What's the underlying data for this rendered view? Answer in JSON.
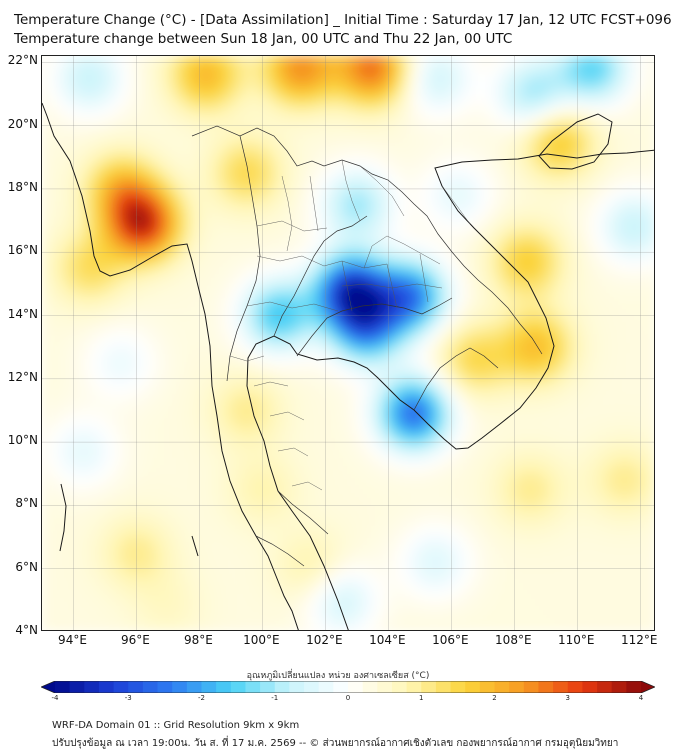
{
  "title_line1": "Temperature Change (°C) - [Data Assimilation] _ Initial Time : Saturday 17 Jan, 12 UTC FCST+096",
  "title_line2": "Temperature change between Sun 18 Jan, 00 UTC and Thu 22 Jan, 00 UTC",
  "map": {
    "lat_ticks": [
      "22°N",
      "20°N",
      "18°N",
      "16°N",
      "14°N",
      "12°N",
      "10°N",
      "8°N",
      "6°N",
      "4°N"
    ],
    "lon_ticks": [
      "94°E",
      "96°E",
      "98°E",
      "100°E",
      "102°E",
      "104°E",
      "106°E",
      "108°E",
      "110°E",
      "112°E"
    ],
    "lat_values": [
      22,
      20,
      18,
      16,
      14,
      12,
      10,
      8,
      6,
      4
    ],
    "lon_values": [
      94,
      96,
      98,
      100,
      102,
      104,
      106,
      108,
      110,
      112
    ],
    "lat_range": [
      4,
      22.2
    ],
    "lon_range": [
      93,
      112.5
    ],
    "anomalies": [
      {
        "lon": 96.2,
        "lat": 16.9,
        "value": 3.2
      },
      {
        "lon": 95.5,
        "lat": 18.0,
        "value": 1.6
      },
      {
        "lon": 94.5,
        "lat": 15.5,
        "value": 1.2
      },
      {
        "lon": 101.2,
        "lat": 21.8,
        "value": 2.3
      },
      {
        "lon": 103.5,
        "lat": 21.8,
        "value": 2.6
      },
      {
        "lon": 98.2,
        "lat": 21.6,
        "value": 1.8
      },
      {
        "lon": 99.5,
        "lat": 18.5,
        "value": 1.3
      },
      {
        "lon": 109.4,
        "lat": 19.5,
        "value": 1.6
      },
      {
        "lon": 108.4,
        "lat": 15.7,
        "value": 1.5
      },
      {
        "lon": 108.7,
        "lat": 13.0,
        "value": 1.7
      },
      {
        "lon": 106.7,
        "lat": 12.6,
        "value": 1.3
      },
      {
        "lon": 108.5,
        "lat": 8.5,
        "value": 0.9
      },
      {
        "lon": 111.5,
        "lat": 8.8,
        "value": 0.9
      },
      {
        "lon": 96.0,
        "lat": 6.5,
        "value": 0.9
      },
      {
        "lon": 102.8,
        "lat": 14.8,
        "value": -3.3
      },
      {
        "lon": 104.7,
        "lat": 14.6,
        "value": -2.5
      },
      {
        "lon": 103.3,
        "lat": 13.6,
        "value": -2.2
      },
      {
        "lon": 100.5,
        "lat": 14.0,
        "value": -1.8
      },
      {
        "lon": 104.8,
        "lat": 10.9,
        "value": -2.7
      },
      {
        "lon": 103.0,
        "lat": 17.5,
        "value": -1.2
      },
      {
        "lon": 110.5,
        "lat": 21.8,
        "value": -1.6
      },
      {
        "lon": 108.6,
        "lat": 21.0,
        "value": -1.2
      },
      {
        "lon": 105.5,
        "lat": 21.5,
        "value": -0.8
      },
      {
        "lon": 94.5,
        "lat": 21.5,
        "value": -0.9
      },
      {
        "lon": 111.8,
        "lat": 16.8,
        "value": -0.9
      },
      {
        "lon": 106.2,
        "lat": 17.8,
        "value": -0.5
      },
      {
        "lon": 95.5,
        "lat": 12.5,
        "value": -0.4
      },
      {
        "lon": 102.5,
        "lat": 5.0,
        "value": -0.8
      },
      {
        "lon": 105.5,
        "lat": 6.2,
        "value": -0.6
      },
      {
        "lon": 94.3,
        "lat": 9.7,
        "value": -0.5
      },
      {
        "lon": 99.5,
        "lat": 11.0,
        "value": 0.9
      },
      {
        "lon": 100.0,
        "lat": 8.5,
        "value": 0.7
      },
      {
        "lon": 101.6,
        "lat": 6.0,
        "value": 0.8
      },
      {
        "lon": 97.0,
        "lat": 4.8,
        "value": 0.5
      }
    ]
  },
  "colorbar": {
    "label": "อุณหภูมิเปลี่ยนแปลง หน่วย องศาเซลเซียส (°C)",
    "min": -4,
    "max": 4,
    "ticks": [
      "-4",
      "-3",
      "-2",
      "-1",
      "0",
      "1",
      "2",
      "3",
      "4"
    ],
    "tick_values": [
      -4,
      -3,
      -2,
      -1,
      0,
      1,
      2,
      3,
      4
    ],
    "colors": [
      "#000a8c",
      "#1d3fd6",
      "#2e7df2",
      "#4ad2f5",
      "#c9f4fb",
      "#ffffff",
      "#fff7b8",
      "#fbd43a",
      "#f79a22",
      "#e83a10",
      "#8c0a0a"
    ]
  },
  "footer": {
    "line1": "WRF-DA Domain 01 :: Grid Resolution 9km x 9km",
    "line2": "ปรับปรุงข้อมูล ณ เวลา 19:00น. วัน ส. ที่ 17 ม.ค. 2569 -- © ส่วนพยากรณ์อากาศเชิงตัวเลข กองพยากรณ์อากาศ กรมอุตุนิยมวิทยา"
  }
}
